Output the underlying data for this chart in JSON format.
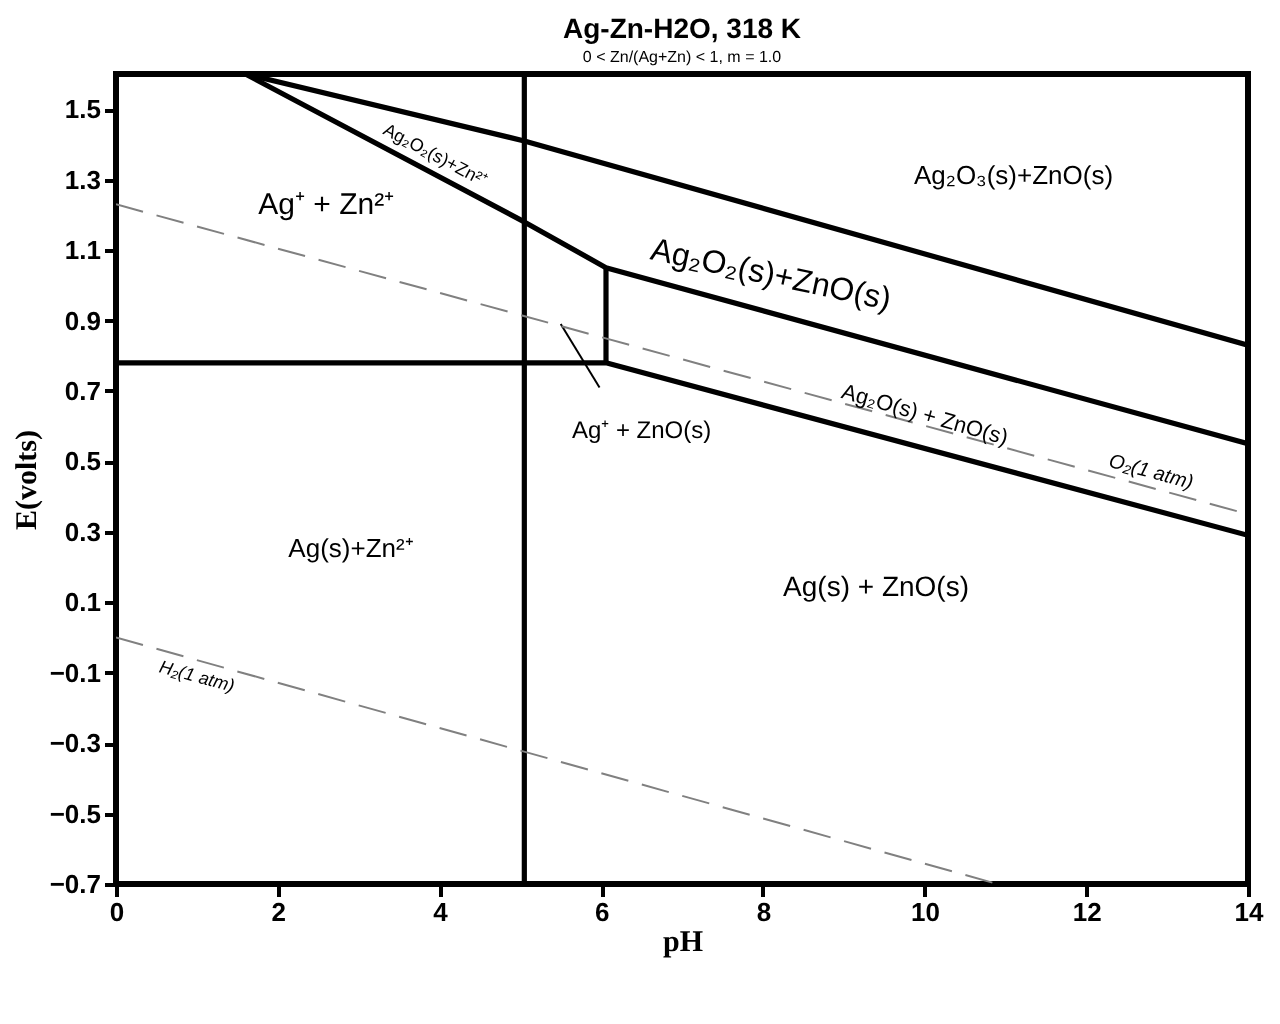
{
  "chart_data": {
    "type": "line",
    "title": "Ag-Zn-H2O, 318 K",
    "subtitle": "0 < Zn/(Ag+Zn) < 1, m = 1.0",
    "xlabel": "pH",
    "ylabel": "E(volts)",
    "xlim": [
      0,
      14
    ],
    "ylim": [
      -0.7,
      1.6
    ],
    "xticks": [
      0,
      2,
      4,
      6,
      8,
      10,
      12,
      14
    ],
    "yticks": [
      -0.7,
      -0.5,
      -0.3,
      -0.1,
      0.1,
      0.3,
      0.5,
      0.7,
      0.9,
      1.1,
      1.3,
      1.5
    ],
    "grid": false,
    "marker": "none",
    "series": [
      {
        "color": "#000000",
        "line_style": "solid",
        "x": [
          5.05,
          5.05
        ],
        "values": [
          -0.7,
          1.6
        ]
      },
      {
        "color": "#000000",
        "line_style": "solid",
        "x": [
          0,
          6.06,
          14
        ],
        "values": [
          0.78,
          0.78,
          0.29
        ]
      },
      {
        "color": "#000000",
        "line_style": "solid",
        "x": [
          6.06,
          6.06
        ],
        "values": [
          0.78,
          1.05
        ]
      },
      {
        "color": "#000000",
        "line_style": "solid",
        "x": [
          1.6,
          5.05,
          6.06,
          14
        ],
        "values": [
          1.6,
          1.18,
          1.05,
          0.55
        ]
      },
      {
        "color": "#000000",
        "line_style": "solid",
        "x": [
          1.6,
          5.05,
          14
        ],
        "values": [
          1.6,
          1.41,
          0.83
        ]
      },
      {
        "color": "#000000",
        "line_style": "solid",
        "x": [
          5.5,
          5.98
        ],
        "values": [
          0.89,
          0.71
        ]
      },
      {
        "color": "#808080",
        "line_style": "dashed",
        "x": [
          0,
          14
        ],
        "values": [
          1.23,
          0.35
        ]
      },
      {
        "color": "#808080",
        "line_style": "dashed",
        "x": [
          0,
          10.9
        ],
        "values": [
          0.0,
          -0.7
        ]
      }
    ],
    "annotations": [
      "Ag₂O₃(s)+ZnO(s)",
      "Ag⁺ + Zn²⁺",
      "Ag₂O₂(s)+Zn²⁺",
      "Ag₂O₂(s)+ZnO(s)",
      "Ag₂O(s) + ZnO(s)",
      "O₂(1 atm)",
      "Ag⁺ + ZnO(s)",
      "Ag(s)+Zn²⁺",
      "Ag(s) + ZnO(s)",
      "H₂(1 atm)"
    ]
  }
}
